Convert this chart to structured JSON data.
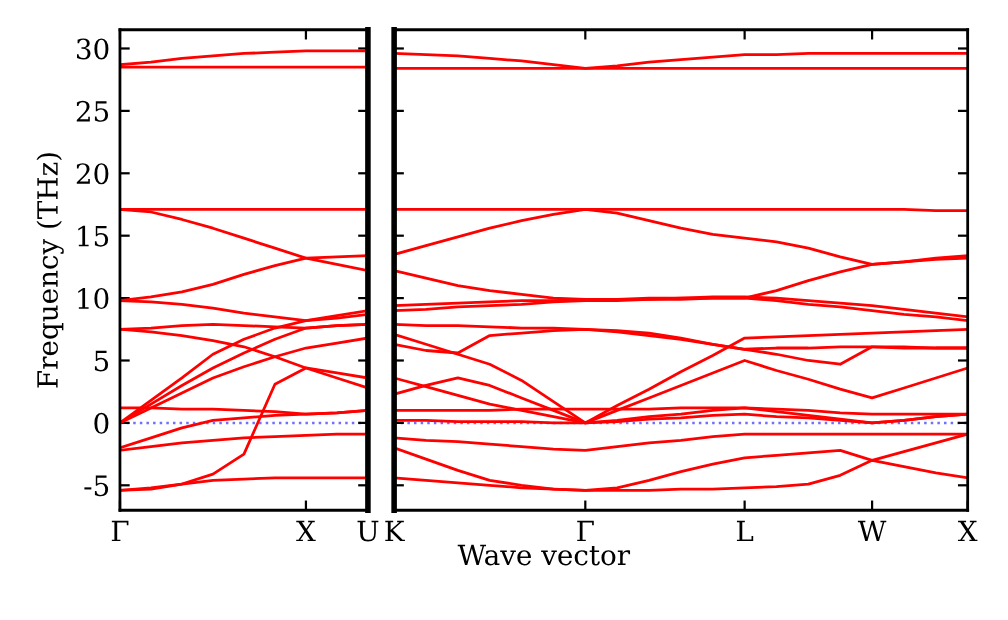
{
  "chart_data": [
    {
      "type": "line",
      "ylabel": "Frequency (THz)",
      "ylim": [
        -7,
        31.5
      ],
      "yticks": [
        -5,
        0,
        5,
        10,
        15,
        20,
        25,
        30
      ],
      "categories": [
        "Γ",
        null,
        null,
        null,
        null,
        null,
        "X",
        null,
        "U"
      ],
      "grid": false,
      "legend": false,
      "marker": "none",
      "line_style": "solid",
      "ref_lines": [
        {
          "axis": "y",
          "value": 0,
          "color": "#7070ff",
          "line_style": "dotted"
        }
      ],
      "series": [
        {
          "color": "#ff0000",
          "values": [
            -5.4,
            -5.2,
            -4.9,
            -4.6,
            -4.5,
            -4.4,
            -4.4,
            -4.4,
            -4.4
          ]
        },
        {
          "color": "#ff0000",
          "values": [
            -5.4,
            -5.3,
            -4.9,
            -4.1,
            -2.5,
            3.1,
            4.4,
            3.6,
            2.8
          ]
        },
        {
          "color": "#ff0000",
          "values": [
            -2.2,
            -1.9,
            -1.6,
            -1.4,
            -1.2,
            -1.1,
            -1.0,
            -0.9,
            -0.9
          ]
        },
        {
          "color": "#ff0000",
          "values": [
            -2.0,
            -1.2,
            -0.4,
            0.2,
            0.4,
            0.6,
            0.7,
            0.8,
            1.0
          ]
        },
        {
          "color": "#ff0000",
          "values": [
            1.2,
            1.2,
            1.1,
            1.1,
            1.0,
            0.9,
            0.7,
            0.8,
            1.0
          ]
        },
        {
          "color": "#ff0000",
          "values": [
            0,
            1.2,
            2.4,
            3.6,
            4.5,
            5.3,
            6.0,
            6.4,
            6.8
          ]
        },
        {
          "color": "#ff0000",
          "values": [
            0,
            1.5,
            3.0,
            4.4,
            5.6,
            6.7,
            7.6,
            7.8,
            7.9
          ]
        },
        {
          "color": "#ff0000",
          "values": [
            0,
            1.8,
            3.6,
            5.5,
            6.7,
            7.6,
            8.2,
            8.6,
            9.0
          ]
        },
        {
          "color": "#ff0000",
          "values": [
            7.5,
            7.3,
            7.0,
            6.6,
            6.1,
            5.3,
            4.4,
            4.0,
            3.6
          ]
        },
        {
          "color": "#ff0000",
          "values": [
            9.8,
            9.7,
            9.5,
            9.2,
            8.8,
            8.5,
            8.2,
            8.4,
            8.7
          ]
        },
        {
          "color": "#ff0000",
          "values": [
            7.5,
            7.6,
            7.8,
            7.9,
            7.8,
            7.7,
            7.6,
            7.8,
            7.9
          ]
        },
        {
          "color": "#ff0000",
          "values": [
            17.1,
            17.1,
            17.1,
            17.1,
            17.1,
            17.1,
            17.1,
            17.1,
            17.1
          ]
        },
        {
          "color": "#ff0000",
          "values": [
            17.1,
            16.9,
            16.3,
            15.6,
            14.8,
            14.0,
            13.2,
            12.7,
            12.2
          ]
        },
        {
          "color": "#ff0000",
          "values": [
            9.8,
            10.1,
            10.5,
            11.1,
            11.9,
            12.6,
            13.2,
            13.3,
            13.4
          ]
        },
        {
          "color": "#ff0000",
          "values": [
            28.5,
            28.5,
            28.5,
            28.5,
            28.5,
            28.5,
            28.5,
            28.5,
            28.5
          ]
        },
        {
          "color": "#ff0000",
          "values": [
            28.7,
            28.9,
            29.2,
            29.4,
            29.6,
            29.7,
            29.8,
            29.8,
            29.8
          ]
        }
      ]
    },
    {
      "type": "line",
      "xlabel": "Wave vector",
      "ylim": [
        -7,
        31.5
      ],
      "yticks": [
        -5,
        0,
        5,
        10,
        15,
        20,
        25,
        30
      ],
      "tick_labels": "x",
      "categories": [
        "K",
        null,
        null,
        null,
        null,
        null,
        "Γ",
        null,
        null,
        null,
        null,
        "L",
        null,
        null,
        null,
        "W",
        null,
        null,
        "X"
      ],
      "grid": false,
      "legend": false,
      "marker": "none",
      "line_style": "solid",
      "ref_lines": [
        {
          "axis": "y",
          "value": 0,
          "color": "#7070ff",
          "line_style": "dotted"
        }
      ],
      "series": [
        {
          "color": "#ff0000",
          "values": [
            -4.4,
            -4.6,
            -4.8,
            -5.0,
            -5.2,
            -5.3,
            -5.4,
            -5.4,
            -5.4,
            -5.3,
            -5.3,
            -5.2,
            -5.1,
            -4.9,
            -4.2,
            -3.0,
            -3.5,
            -4.0,
            -4.4
          ]
        },
        {
          "color": "#ff0000",
          "values": [
            -2.0,
            -2.9,
            -3.8,
            -4.6,
            -5.0,
            -5.3,
            -5.4,
            -5.2,
            -4.6,
            -3.9,
            -3.3,
            -2.8,
            -2.6,
            -2.4,
            -2.2,
            -3.0,
            -2.3,
            -1.6,
            -0.9
          ]
        },
        {
          "color": "#ff0000",
          "values": [
            -1.2,
            -1.4,
            -1.5,
            -1.7,
            -1.9,
            -2.1,
            -2.2,
            -1.9,
            -1.6,
            -1.4,
            -1.1,
            -0.9,
            -0.9,
            -0.9,
            -0.9,
            -0.9,
            -0.9,
            -0.9,
            -0.9
          ]
        },
        {
          "color": "#ff0000",
          "values": [
            0.2,
            0.2,
            0.1,
            0.1,
            0.1,
            0,
            0,
            0.1,
            0.3,
            0.4,
            0.6,
            0.7,
            0.5,
            0.4,
            0.2,
            0,
            0.2,
            0.5,
            0.7
          ]
        },
        {
          "color": "#ff0000",
          "values": [
            1.0,
            1.0,
            1.0,
            1.0,
            1.1,
            1.1,
            1.1,
            1.1,
            1.1,
            1.2,
            1.2,
            1.2,
            1.1,
            1.0,
            0.8,
            0.7,
            0.7,
            0.7,
            0.7
          ]
        },
        {
          "color": "#ff0000",
          "values": [
            2.3,
            3.0,
            3.6,
            3.0,
            2.0,
            1.0,
            0,
            1.0,
            2.0,
            3.0,
            4.0,
            5.0,
            4.2,
            3.5,
            2.7,
            2.0,
            2.8,
            3.6,
            4.4
          ]
        },
        {
          "color": "#ff0000",
          "values": [
            3.6,
            2.9,
            2.2,
            1.5,
            1.0,
            0.5,
            0,
            0.2,
            0.5,
            0.7,
            1.0,
            1.2,
            0.9,
            0.6,
            0.3,
            0,
            0.2,
            0.5,
            0.7
          ]
        },
        {
          "color": "#ff0000",
          "values": [
            6.3,
            5.8,
            5.6,
            7.0,
            7.2,
            7.4,
            7.5,
            7.3,
            7.0,
            6.7,
            6.3,
            5.9,
            6.0,
            6.0,
            6.1,
            6.1,
            6.0,
            6.0,
            6.0
          ]
        },
        {
          "color": "#ff0000",
          "values": [
            7.1,
            6.3,
            5.5,
            4.7,
            3.4,
            1.7,
            0,
            1.4,
            2.7,
            4.1,
            5.4,
            6.8,
            6.9,
            7.0,
            7.1,
            7.2,
            7.3,
            7.4,
            7.5
          ]
        },
        {
          "color": "#ff0000",
          "values": [
            7.9,
            7.8,
            7.8,
            7.7,
            7.6,
            7.6,
            7.5,
            7.4,
            7.2,
            6.8,
            6.3,
            5.9,
            5.5,
            5.0,
            4.7,
            6.1,
            6.1,
            6.0,
            6.0
          ]
        },
        {
          "color": "#ff0000",
          "values": [
            9.0,
            9.1,
            9.3,
            9.4,
            9.5,
            9.7,
            9.8,
            9.8,
            9.9,
            9.9,
            10.0,
            10.0,
            9.8,
            9.5,
            9.3,
            9.0,
            8.7,
            8.5,
            8.2
          ]
        },
        {
          "color": "#ff0000",
          "values": [
            9.4,
            9.5,
            9.6,
            9.7,
            9.8,
            9.8,
            9.9,
            9.9,
            10.0,
            10.0,
            10.1,
            10.1,
            10.0,
            9.8,
            9.6,
            9.4,
            9.1,
            8.8,
            8.5
          ]
        },
        {
          "color": "#ff0000",
          "values": [
            12.2,
            11.6,
            11.0,
            10.6,
            10.3,
            10.0,
            9.9,
            9.9,
            9.9,
            10.0,
            10.0,
            10.0,
            10.6,
            11.4,
            12.1,
            12.7,
            12.9,
            13.1,
            13.2
          ]
        },
        {
          "color": "#ff0000",
          "values": [
            13.5,
            14.2,
            14.9,
            15.6,
            16.2,
            16.7,
            17.1,
            16.8,
            16.2,
            15.6,
            15.1,
            14.8,
            14.5,
            14.0,
            13.3,
            12.7,
            12.9,
            13.2,
            13.4
          ]
        },
        {
          "color": "#ff0000",
          "values": [
            17.1,
            17.1,
            17.1,
            17.1,
            17.1,
            17.1,
            17.1,
            17.1,
            17.1,
            17.1,
            17.1,
            17.1,
            17.1,
            17.1,
            17.1,
            17.1,
            17.1,
            17.0,
            17.0
          ]
        },
        {
          "color": "#ff0000",
          "values": [
            28.4,
            28.4,
            28.4,
            28.4,
            28.4,
            28.4,
            28.4,
            28.4,
            28.4,
            28.4,
            28.4,
            28.4,
            28.4,
            28.4,
            28.4,
            28.4,
            28.4,
            28.4,
            28.4
          ]
        },
        {
          "color": "#ff0000",
          "values": [
            29.6,
            29.5,
            29.4,
            29.2,
            29.0,
            28.7,
            28.4,
            28.6,
            28.9,
            29.1,
            29.3,
            29.5,
            29.5,
            29.6,
            29.6,
            29.6,
            29.6,
            29.6,
            29.6
          ]
        }
      ]
    }
  ]
}
